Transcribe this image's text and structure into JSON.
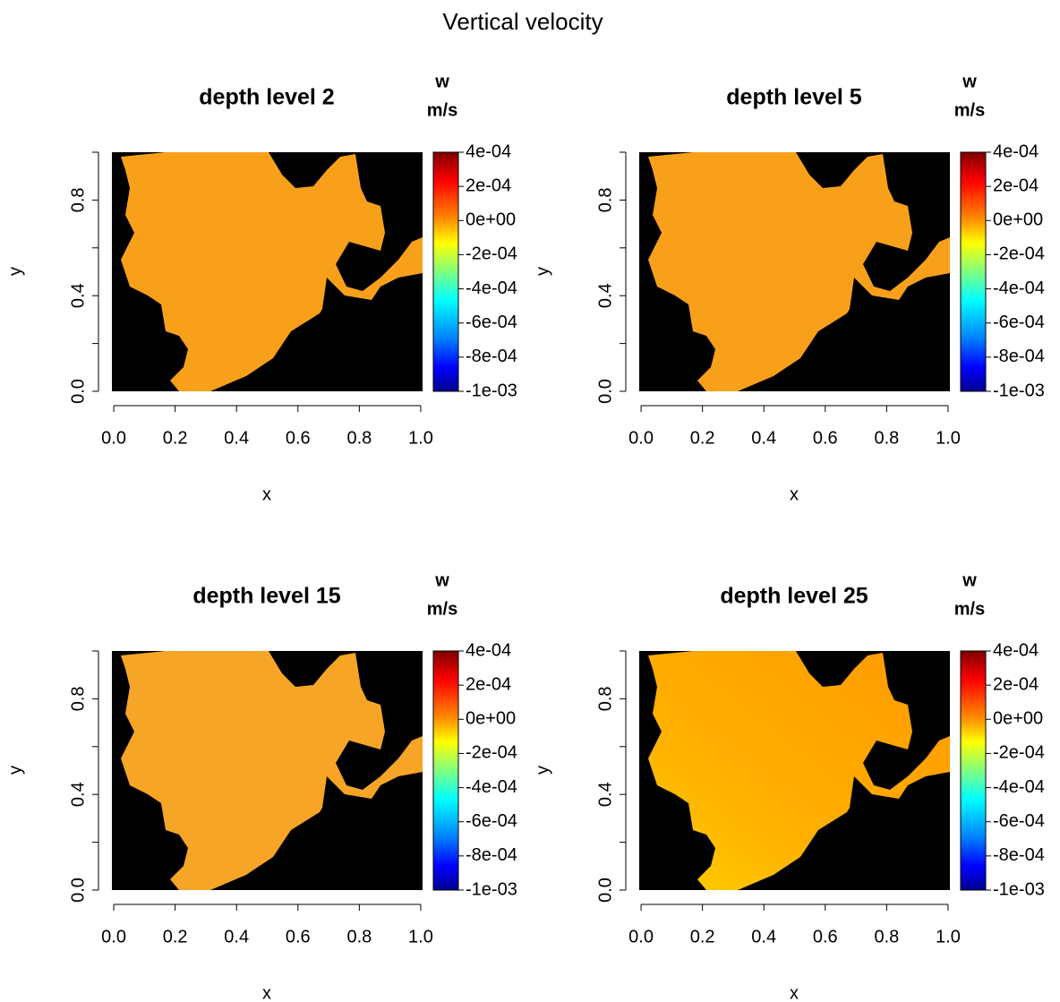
{
  "title": "Vertical velocity",
  "chart_data": [
    {
      "type": "heatmap",
      "title": "depth level 2",
      "xlabel": "x",
      "ylabel": "y",
      "xlim": [
        -0.006,
        1.006
      ],
      "ylim": [
        0,
        1
      ],
      "xticks": [
        {
          "value": 0,
          "label": "0.0"
        },
        0.2,
        0.4,
        0.6,
        0.8,
        {
          "value": 1,
          "label": "1.0"
        }
      ],
      "yticks": [
        {
          "value": 0,
          "label": "0.0"
        },
        {
          "value": 0.2,
          "label": null
        },
        0.4,
        {
          "value": 0.6,
          "label": null
        },
        0.8,
        {
          "value": 1,
          "label": null
        }
      ],
      "colorbar": {
        "title": "w",
        "unit": "m/s",
        "lim": [
          -0.001,
          0.0004
        ],
        "ticks": [
          {
            "value": 0.0004,
            "label": "4e-04"
          },
          {
            "value": 0.0002,
            "label": "2e-04"
          },
          {
            "value": 0,
            "label": "0e+00"
          },
          {
            "value": -0.0002,
            "label": "-2e-04"
          },
          {
            "value": -0.0004,
            "label": "-4e-04"
          },
          {
            "value": -0.0006,
            "label": "-6e-04"
          },
          {
            "value": -0.0008,
            "label": "-8e-04"
          },
          {
            "value": -0.001,
            "label": "-1e-03"
          }
        ]
      }
    },
    {
      "type": "heatmap",
      "title": "depth level 5",
      "xlabel": "x",
      "ylabel": "y",
      "xlim": [
        -0.006,
        1.006
      ],
      "ylim": [
        0,
        1
      ],
      "xticks": [
        {
          "value": 0,
          "label": "0.0"
        },
        0.2,
        0.4,
        0.6,
        0.8,
        {
          "value": 1,
          "label": "1.0"
        }
      ],
      "yticks": [
        {
          "value": 0,
          "label": "0.0"
        },
        {
          "value": 0.2,
          "label": null
        },
        0.4,
        {
          "value": 0.6,
          "label": null
        },
        0.8,
        {
          "value": 1,
          "label": null
        }
      ],
      "colorbar": {
        "title": "w",
        "unit": "m/s",
        "lim": [
          -0.001,
          0.0004
        ],
        "ticks": [
          {
            "value": 0.0004,
            "label": "4e-04"
          },
          {
            "value": 0.0002,
            "label": "2e-04"
          },
          {
            "value": 0,
            "label": "0e+00"
          },
          {
            "value": -0.0002,
            "label": "-2e-04"
          },
          {
            "value": -0.0004,
            "label": "-4e-04"
          },
          {
            "value": -0.0006,
            "label": "-6e-04"
          },
          {
            "value": -0.0008,
            "label": "-8e-04"
          },
          {
            "value": -0.001,
            "label": "-1e-03"
          }
        ]
      }
    },
    {
      "type": "heatmap",
      "title": "depth level 15",
      "xlabel": "x",
      "ylabel": "y",
      "xlim": [
        -0.006,
        1.006
      ],
      "ylim": [
        0,
        1
      ],
      "xticks": [
        {
          "value": 0,
          "label": "0.0"
        },
        0.2,
        0.4,
        0.6,
        0.8,
        {
          "value": 1,
          "label": "1.0"
        }
      ],
      "yticks": [
        {
          "value": 0,
          "label": "0.0"
        },
        {
          "value": 0.2,
          "label": null
        },
        0.4,
        {
          "value": 0.6,
          "label": null
        },
        0.8,
        {
          "value": 1,
          "label": null
        }
      ],
      "colorbar": {
        "title": "w",
        "unit": "m/s",
        "lim": [
          -0.001,
          0.0004
        ],
        "ticks": [
          {
            "value": 0.0004,
            "label": "4e-04"
          },
          {
            "value": 0.0002,
            "label": "2e-04"
          },
          {
            "value": 0,
            "label": "0e+00"
          },
          {
            "value": -0.0002,
            "label": "-2e-04"
          },
          {
            "value": -0.0004,
            "label": "-4e-04"
          },
          {
            "value": -0.0006,
            "label": "-6e-04"
          },
          {
            "value": -0.0008,
            "label": "-8e-04"
          },
          {
            "value": -0.001,
            "label": "-1e-03"
          }
        ]
      }
    },
    {
      "type": "heatmap",
      "title": "depth level 25",
      "xlabel": "x",
      "ylabel": "y",
      "xlim": [
        -0.006,
        1.006
      ],
      "ylim": [
        0,
        1
      ],
      "xticks": [
        {
          "value": 0,
          "label": "0.0"
        },
        0.2,
        0.4,
        0.6,
        0.8,
        {
          "value": 1,
          "label": "1.0"
        }
      ],
      "yticks": [
        {
          "value": 0,
          "label": "0.0"
        },
        {
          "value": 0.2,
          "label": null
        },
        0.4,
        {
          "value": 0.6,
          "label": null
        },
        0.8,
        {
          "value": 1,
          "label": null
        }
      ],
      "colorbar": {
        "title": "w",
        "unit": "m/s",
        "lim": [
          -0.001,
          0.0004
        ],
        "ticks": [
          {
            "value": 0.0004,
            "label": "4e-04"
          },
          {
            "value": 0.0002,
            "label": "2e-04"
          },
          {
            "value": 0,
            "label": "0e+00"
          },
          {
            "value": -0.0002,
            "label": "-2e-04"
          },
          {
            "value": -0.0004,
            "label": "-4e-04"
          },
          {
            "value": -0.0006,
            "label": "-6e-04"
          },
          {
            "value": -0.0008,
            "label": "-8e-04"
          },
          {
            "value": -0.001,
            "label": "-1e-03"
          }
        ]
      }
    }
  ]
}
